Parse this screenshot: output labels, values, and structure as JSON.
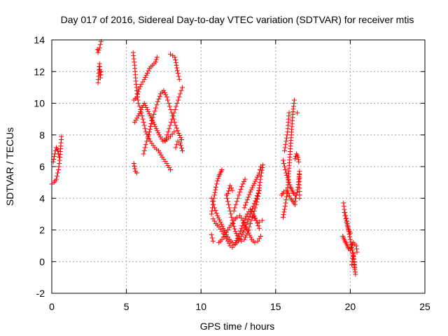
{
  "chart_data": {
    "type": "scatter",
    "title": "Day 017 of 2016, Sidereal Day-to-day VTEC variation (SDTVAR) for receiver mtis",
    "xlabel": "GPS time / hours",
    "ylabel": "SDTVAR / TECUs",
    "xlim": [
      0,
      25
    ],
    "ylim": [
      -2,
      14
    ],
    "xticks": [
      0,
      5,
      10,
      15,
      20,
      25
    ],
    "yticks": [
      -2,
      0,
      2,
      4,
      6,
      8,
      10,
      12,
      14
    ],
    "xtick_labels": [
      "0",
      "5",
      "10",
      "15",
      "20",
      "25"
    ],
    "ytick_labels": [
      "-2",
      "0",
      "2",
      "4",
      "6",
      "8",
      "10",
      "12",
      "14"
    ],
    "grid": true,
    "legend": "none",
    "marker": "plus",
    "color": "#ff0000",
    "tracks": [
      [
        [
          0.0,
          4.9
        ],
        [
          0.15,
          5.0
        ],
        [
          0.3,
          5.2
        ],
        [
          0.45,
          5.8
        ],
        [
          0.55,
          6.6
        ],
        [
          0.6,
          7.3
        ],
        [
          0.65,
          7.9
        ]
      ],
      [
        [
          0.1,
          6.3
        ],
        [
          0.2,
          6.8
        ],
        [
          0.3,
          7.2
        ],
        [
          0.4,
          7.0
        ],
        [
          0.5,
          6.6
        ]
      ],
      [
        [
          3.05,
          13.4
        ],
        [
          3.1,
          13.2
        ],
        [
          3.2,
          13.5
        ],
        [
          3.3,
          13.9
        ]
      ],
      [
        [
          3.1,
          11.3
        ],
        [
          3.15,
          11.9
        ],
        [
          3.2,
          12.5
        ],
        [
          3.25,
          11.6
        ],
        [
          3.3,
          12.0
        ]
      ],
      [
        [
          5.45,
          13.2
        ],
        [
          5.55,
          12.4
        ],
        [
          5.65,
          11.2
        ],
        [
          5.8,
          10.0
        ],
        [
          5.95,
          9.6
        ],
        [
          6.1,
          9.0
        ],
        [
          6.3,
          8.2
        ],
        [
          6.6,
          7.6
        ],
        [
          6.9,
          7.2
        ],
        [
          7.15,
          7.0
        ],
        [
          7.4,
          6.6
        ],
        [
          7.7,
          6.2
        ],
        [
          7.95,
          5.8
        ]
      ],
      [
        [
          5.5,
          10.2
        ],
        [
          5.7,
          10.4
        ],
        [
          5.85,
          10.9
        ],
        [
          6.0,
          11.2
        ],
        [
          6.2,
          11.5
        ],
        [
          6.4,
          11.9
        ],
        [
          6.55,
          12.2
        ],
        [
          6.75,
          12.4
        ],
        [
          6.95,
          12.6
        ],
        [
          7.05,
          12.9
        ]
      ],
      [
        [
          5.55,
          8.8
        ],
        [
          5.8,
          9.2
        ],
        [
          6.0,
          9.6
        ],
        [
          6.2,
          10.0
        ],
        [
          6.4,
          9.6
        ],
        [
          6.6,
          9.2
        ],
        [
          6.8,
          8.8
        ],
        [
          7.0,
          8.4
        ],
        [
          7.2,
          8.0
        ],
        [
          7.45,
          7.6
        ],
        [
          7.7,
          7.7
        ],
        [
          7.95,
          7.9
        ],
        [
          8.2,
          8.2
        ]
      ],
      [
        [
          5.5,
          6.2
        ],
        [
          5.6,
          5.7
        ],
        [
          5.7,
          5.6
        ]
      ],
      [
        [
          6.15,
          6.8
        ],
        [
          6.3,
          7.4
        ],
        [
          6.5,
          8.0
        ],
        [
          6.7,
          8.9
        ],
        [
          6.9,
          9.5
        ],
        [
          7.1,
          10.1
        ],
        [
          7.3,
          10.6
        ],
        [
          7.5,
          10.8
        ],
        [
          7.7,
          10.4
        ],
        [
          7.9,
          9.8
        ],
        [
          8.1,
          9.2
        ],
        [
          8.3,
          8.6
        ],
        [
          8.5,
          8.1
        ],
        [
          8.7,
          7.7
        ]
      ],
      [
        [
          7.6,
          7.6
        ],
        [
          7.8,
          8.2
        ],
        [
          8.0,
          8.8
        ],
        [
          8.2,
          9.4
        ],
        [
          8.4,
          10.0
        ],
        [
          8.6,
          10.6
        ],
        [
          8.75,
          11.0
        ]
      ],
      [
        [
          7.95,
          13.1
        ],
        [
          8.1,
          13.0
        ],
        [
          8.25,
          12.9
        ],
        [
          8.35,
          12.4
        ],
        [
          8.45,
          11.9
        ],
        [
          8.55,
          11.5
        ]
      ],
      [
        [
          8.3,
          7.2
        ],
        [
          8.45,
          7.6
        ],
        [
          8.6,
          7.5
        ],
        [
          8.75,
          7.0
        ]
      ],
      [
        [
          10.7,
          1.7
        ],
        [
          10.8,
          1.3
        ]
      ],
      [
        [
          10.7,
          3.0
        ],
        [
          10.8,
          3.6
        ],
        [
          10.9,
          4.2
        ],
        [
          11.0,
          4.7
        ],
        [
          11.1,
          5.1
        ],
        [
          11.2,
          5.4
        ],
        [
          11.3,
          5.6
        ],
        [
          11.4,
          5.8
        ]
      ],
      [
        [
          10.7,
          4.0
        ],
        [
          10.9,
          3.4
        ],
        [
          11.1,
          2.9
        ],
        [
          11.3,
          2.5
        ],
        [
          11.5,
          2.1
        ],
        [
          11.7,
          1.7
        ],
        [
          11.9,
          1.4
        ],
        [
          12.1,
          1.2
        ],
        [
          12.3,
          1.1
        ],
        [
          12.5,
          1.3
        ],
        [
          12.7,
          1.6
        ],
        [
          12.9,
          2.0
        ],
        [
          13.1,
          2.5
        ],
        [
          13.3,
          3.0
        ],
        [
          13.5,
          3.5
        ],
        [
          13.7,
          4.0
        ],
        [
          13.9,
          4.5
        ]
      ],
      [
        [
          10.8,
          2.7
        ],
        [
          11.0,
          2.4
        ],
        [
          11.2,
          2.2
        ],
        [
          11.4,
          1.9
        ],
        [
          11.6,
          1.6
        ],
        [
          11.8,
          1.3
        ],
        [
          11.95,
          1.0
        ],
        [
          12.1,
          0.9
        ],
        [
          12.3,
          1.2
        ],
        [
          12.5,
          1.6
        ],
        [
          12.7,
          2.1
        ],
        [
          12.9,
          2.6
        ],
        [
          13.1,
          3.0
        ],
        [
          13.3,
          3.3
        ],
        [
          13.5,
          3.0
        ],
        [
          13.7,
          2.6
        ],
        [
          13.9,
          2.1
        ]
      ],
      [
        [
          11.2,
          1.2
        ],
        [
          11.4,
          1.4
        ],
        [
          11.6,
          1.7
        ],
        [
          11.8,
          2.0
        ],
        [
          12.0,
          2.3
        ],
        [
          12.2,
          2.6
        ],
        [
          12.4,
          2.8
        ],
        [
          12.6,
          2.9
        ],
        [
          12.8,
          2.6
        ],
        [
          13.0,
          2.2
        ],
        [
          13.2,
          1.8
        ],
        [
          13.4,
          1.4
        ],
        [
          13.6,
          1.2
        ],
        [
          13.8,
          1.3
        ],
        [
          14.0,
          1.6
        ]
      ],
      [
        [
          11.7,
          4.2
        ],
        [
          11.85,
          3.6
        ],
        [
          12.0,
          3.0
        ],
        [
          12.15,
          2.4
        ],
        [
          12.3,
          1.9
        ],
        [
          12.5,
          1.5
        ],
        [
          12.7,
          1.3
        ],
        [
          12.9,
          1.4
        ],
        [
          13.1,
          1.8
        ],
        [
          13.3,
          2.4
        ],
        [
          13.5,
          3.0
        ],
        [
          13.7,
          3.6
        ],
        [
          13.85,
          4.3
        ],
        [
          13.95,
          5.0
        ],
        [
          14.05,
          5.6
        ],
        [
          14.15,
          6.1
        ]
      ],
      [
        [
          11.8,
          4.3
        ],
        [
          11.95,
          4.8
        ],
        [
          12.1,
          4.5
        ]
      ],
      [
        [
          12.2,
          3.2
        ],
        [
          12.4,
          3.8
        ],
        [
          12.6,
          4.4
        ],
        [
          12.8,
          4.9
        ],
        [
          12.95,
          5.2
        ]
      ],
      [
        [
          12.9,
          3.4
        ],
        [
          13.1,
          3.9
        ],
        [
          13.3,
          4.4
        ],
        [
          13.5,
          4.8
        ],
        [
          13.7,
          5.2
        ],
        [
          13.9,
          5.6
        ],
        [
          14.0,
          6.0
        ]
      ],
      [
        [
          13.5,
          2.9
        ],
        [
          13.7,
          2.6
        ],
        [
          13.9,
          2.5
        ],
        [
          14.1,
          2.6
        ]
      ],
      [
        [
          15.5,
          2.8
        ],
        [
          15.6,
          3.3
        ],
        [
          15.7,
          3.9
        ],
        [
          15.8,
          4.5
        ],
        [
          15.85,
          5.2
        ],
        [
          15.9,
          5.9
        ],
        [
          15.95,
          6.6
        ],
        [
          16.0,
          7.3
        ],
        [
          16.05,
          8.0
        ],
        [
          16.1,
          8.7
        ],
        [
          16.15,
          9.3
        ],
        [
          16.2,
          9.8
        ],
        [
          16.25,
          10.2
        ]
      ],
      [
        [
          15.4,
          4.2
        ],
        [
          15.55,
          4.4
        ],
        [
          15.7,
          4.5
        ],
        [
          15.85,
          4.3
        ],
        [
          16.0,
          4.0
        ],
        [
          16.15,
          3.8
        ],
        [
          16.3,
          3.6
        ]
      ],
      [
        [
          15.5,
          6.4
        ],
        [
          15.6,
          6.0
        ],
        [
          15.7,
          5.6
        ],
        [
          15.8,
          5.3
        ],
        [
          15.9,
          5.0
        ],
        [
          16.0,
          4.7
        ],
        [
          16.1,
          4.5
        ],
        [
          16.2,
          4.3
        ],
        [
          16.3,
          4.2
        ]
      ],
      [
        [
          15.6,
          7.0
        ],
        [
          15.7,
          7.6
        ],
        [
          15.8,
          8.2
        ],
        [
          15.85,
          8.8
        ],
        [
          15.9,
          9.4
        ]
      ],
      [
        [
          16.3,
          6.5
        ],
        [
          16.4,
          6.8
        ],
        [
          16.5,
          6.6
        ],
        [
          16.55,
          6.3
        ]
      ],
      [
        [
          16.3,
          3.8
        ],
        [
          16.4,
          4.2
        ],
        [
          16.5,
          4.7
        ],
        [
          16.55,
          5.2
        ],
        [
          16.6,
          5.7
        ],
        [
          16.6,
          4.0
        ]
      ],
      [
        [
          16.45,
          9.4
        ]
      ],
      [
        [
          19.55,
          3.7
        ],
        [
          19.6,
          3.3
        ],
        [
          19.7,
          2.9
        ],
        [
          19.8,
          2.4
        ],
        [
          19.9,
          1.9
        ],
        [
          20.0,
          1.4
        ],
        [
          20.1,
          0.9
        ],
        [
          20.2,
          0.4
        ],
        [
          20.25,
          0.0
        ],
        [
          20.3,
          -0.5
        ],
        [
          20.35,
          -0.8
        ]
      ],
      [
        [
          19.5,
          1.6
        ],
        [
          19.6,
          1.4
        ],
        [
          19.7,
          1.2
        ],
        [
          19.8,
          1.0
        ],
        [
          19.9,
          0.8
        ],
        [
          20.0,
          0.7
        ],
        [
          20.1,
          1.0
        ],
        [
          20.2,
          1.2
        ],
        [
          20.3,
          1.1
        ],
        [
          20.4,
          1.0
        ],
        [
          20.45,
          0.6
        ]
      ],
      [
        [
          19.6,
          3.1
        ],
        [
          19.7,
          2.7
        ],
        [
          19.8,
          2.3
        ],
        [
          19.9,
          2.0
        ],
        [
          20.0,
          1.8
        ]
      ],
      [
        [
          20.1,
          -0.2
        ],
        [
          20.15,
          0.2
        ],
        [
          20.2,
          0.5
        ],
        [
          20.3,
          -0.4
        ]
      ]
    ]
  }
}
